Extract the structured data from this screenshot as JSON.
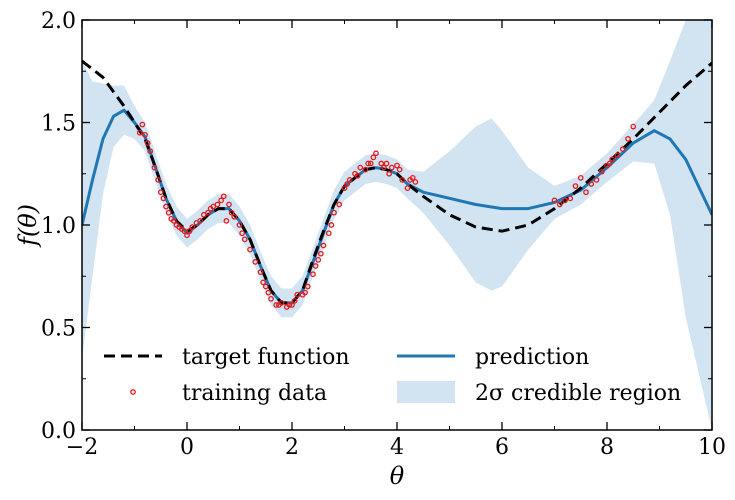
{
  "chart_data": {
    "type": "line",
    "title": "",
    "xlabel": "θ",
    "ylabel": "f(θ)",
    "xlim": [
      -2,
      10
    ],
    "ylim": [
      0.0,
      2.0
    ],
    "xticks": [
      -2,
      0,
      2,
      4,
      6,
      8,
      10
    ],
    "xtick_labels": [
      "−2",
      "0",
      "2",
      "4",
      "6",
      "8",
      "10"
    ],
    "yticks": [
      0.0,
      0.5,
      1.0,
      1.5,
      2.0
    ],
    "ytick_labels": [
      "0.0",
      "0.5",
      "1.0",
      "1.5",
      "2.0"
    ],
    "legend": {
      "placement": "bottom",
      "entries": [
        {
          "key": "target",
          "label": "target function"
        },
        {
          "key": "prediction",
          "label": "prediction"
        },
        {
          "key": "training",
          "label": "training data"
        },
        {
          "key": "band",
          "label": "2σ credible region"
        }
      ]
    },
    "colors": {
      "target": "#000000",
      "prediction": "#1f77b4",
      "training": "#e31a1c",
      "band_fill": "#a6c8e3"
    },
    "series": [
      {
        "name": "target function",
        "x": [
          -2,
          -1.6,
          -1.2,
          -1.0,
          -0.8,
          -0.6,
          -0.4,
          -0.2,
          0,
          0.2,
          0.4,
          0.6,
          0.8,
          1.0,
          1.2,
          1.4,
          1.6,
          1.8,
          2.0,
          2.2,
          2.4,
          2.6,
          2.8,
          3.0,
          3.2,
          3.4,
          3.6,
          3.8,
          4.0,
          4.2,
          4.5,
          5.0,
          5.5,
          6.0,
          6.5,
          7.0,
          7.5,
          8.0,
          8.5,
          9.0,
          9.5,
          10.0
        ],
        "y": [
          1.8,
          1.72,
          1.58,
          1.5,
          1.42,
          1.28,
          1.13,
          1.02,
          0.97,
          1.0,
          1.05,
          1.08,
          1.08,
          1.02,
          0.93,
          0.8,
          0.68,
          0.62,
          0.62,
          0.68,
          0.83,
          0.97,
          1.1,
          1.19,
          1.23,
          1.27,
          1.28,
          1.27,
          1.25,
          1.2,
          1.14,
          1.05,
          0.99,
          0.97,
          1.0,
          1.08,
          1.18,
          1.3,
          1.42,
          1.55,
          1.68,
          1.79
        ]
      },
      {
        "name": "prediction",
        "x": [
          -2,
          -1.8,
          -1.6,
          -1.4,
          -1.2,
          -1.0,
          -0.8,
          -0.6,
          -0.4,
          -0.2,
          0,
          0.2,
          0.4,
          0.6,
          0.8,
          1.0,
          1.2,
          1.4,
          1.6,
          1.8,
          2.0,
          2.2,
          2.4,
          2.6,
          2.8,
          3.0,
          3.2,
          3.4,
          3.6,
          3.8,
          4.0,
          4.2,
          4.5,
          5.0,
          5.5,
          6.0,
          6.5,
          7.0,
          7.5,
          8.0,
          8.5,
          8.9,
          9.2,
          9.5,
          10.0
        ],
        "y": [
          1.0,
          1.22,
          1.42,
          1.53,
          1.56,
          1.5,
          1.43,
          1.28,
          1.13,
          1.02,
          0.96,
          1.0,
          1.05,
          1.08,
          1.08,
          1.02,
          0.93,
          0.8,
          0.68,
          0.62,
          0.62,
          0.68,
          0.82,
          0.96,
          1.1,
          1.19,
          1.23,
          1.27,
          1.28,
          1.27,
          1.25,
          1.2,
          1.16,
          1.13,
          1.1,
          1.08,
          1.08,
          1.11,
          1.17,
          1.28,
          1.4,
          1.46,
          1.42,
          1.32,
          1.05
        ]
      }
    ],
    "credible_region": {
      "name": "2σ credible region",
      "x": [
        -2,
        -1.8,
        -1.6,
        -1.4,
        -1.2,
        -1.0,
        -0.8,
        -0.6,
        -0.4,
        -0.2,
        0,
        0.2,
        0.4,
        0.6,
        0.8,
        1.0,
        1.2,
        1.4,
        1.6,
        1.8,
        2.0,
        2.2,
        2.4,
        2.6,
        2.8,
        3.0,
        3.2,
        3.4,
        3.6,
        3.8,
        4.0,
        4.2,
        4.5,
        5.0,
        5.5,
        5.8,
        6.0,
        6.5,
        7.0,
        7.5,
        8.0,
        8.5,
        8.9,
        9.2,
        9.5,
        10.0
      ],
      "lower": [
        0.35,
        0.75,
        1.15,
        1.38,
        1.44,
        1.42,
        1.36,
        1.21,
        1.06,
        0.95,
        0.89,
        0.93,
        0.98,
        1.01,
        1.01,
        0.95,
        0.86,
        0.73,
        0.61,
        0.55,
        0.55,
        0.61,
        0.75,
        0.89,
        1.03,
        1.12,
        1.16,
        1.2,
        1.21,
        1.2,
        1.18,
        1.13,
        1.06,
        0.9,
        0.72,
        0.68,
        0.7,
        0.88,
        1.03,
        1.1,
        1.21,
        1.31,
        1.3,
        1.05,
        0.55,
        0.0
      ],
      "upper": [
        1.8,
        1.7,
        1.69,
        1.68,
        1.68,
        1.58,
        1.5,
        1.35,
        1.2,
        1.09,
        1.03,
        1.07,
        1.12,
        1.15,
        1.15,
        1.09,
        1.0,
        0.87,
        0.75,
        0.69,
        0.69,
        0.75,
        0.89,
        1.03,
        1.17,
        1.26,
        1.3,
        1.34,
        1.35,
        1.34,
        1.32,
        1.27,
        1.26,
        1.36,
        1.48,
        1.52,
        1.46,
        1.28,
        1.19,
        1.24,
        1.35,
        1.49,
        1.61,
        1.8,
        2.0,
        2.0
      ]
    },
    "training_data": {
      "name": "training data",
      "x": [
        -0.9,
        -0.85,
        -0.8,
        -0.75,
        -0.7,
        -0.62,
        -0.55,
        -0.5,
        -0.45,
        -0.4,
        -0.35,
        -0.3,
        -0.25,
        -0.2,
        -0.15,
        -0.1,
        -0.05,
        0.0,
        0.05,
        0.1,
        0.18,
        0.25,
        0.32,
        0.4,
        0.45,
        0.5,
        0.58,
        0.65,
        0.7,
        0.75,
        0.8,
        0.85,
        0.9,
        1.0,
        1.05,
        1.1,
        1.2,
        1.3,
        1.4,
        1.45,
        1.5,
        1.55,
        1.6,
        1.7,
        1.75,
        1.8,
        1.9,
        1.95,
        2.0,
        2.05,
        2.1,
        2.2,
        2.25,
        2.3,
        2.4,
        2.45,
        2.5,
        2.55,
        2.6,
        2.7,
        2.75,
        2.8,
        2.9,
        3.0,
        3.05,
        3.1,
        3.2,
        3.25,
        3.3,
        3.4,
        3.45,
        3.5,
        3.55,
        3.6,
        3.7,
        3.75,
        3.8,
        3.85,
        3.9,
        4.0,
        4.05,
        4.1,
        4.2,
        4.25,
        4.3,
        4.35,
        7.0,
        7.1,
        7.2,
        7.3,
        7.4,
        7.5,
        7.6,
        7.7,
        7.8,
        7.9,
        8.0,
        8.05,
        8.1,
        8.2,
        8.3,
        8.4,
        8.5
      ],
      "y": [
        1.45,
        1.49,
        1.44,
        1.4,
        1.36,
        1.28,
        1.22,
        1.16,
        1.13,
        1.09,
        1.06,
        1.03,
        1.02,
        1.0,
        0.99,
        0.98,
        0.97,
        0.95,
        0.97,
        0.99,
        1.01,
        1.02,
        1.05,
        1.06,
        1.08,
        1.09,
        1.1,
        1.12,
        1.14,
        1.02,
        1.1,
        1.06,
        1.04,
        1.0,
        0.96,
        0.93,
        0.88,
        0.82,
        0.77,
        0.72,
        0.7,
        0.67,
        0.64,
        0.61,
        0.61,
        0.62,
        0.6,
        0.61,
        0.61,
        0.63,
        0.66,
        0.66,
        0.67,
        0.7,
        0.76,
        0.8,
        0.83,
        0.86,
        0.9,
        0.96,
        1.0,
        1.06,
        1.1,
        1.18,
        1.2,
        1.22,
        1.25,
        1.24,
        1.28,
        1.27,
        1.3,
        1.3,
        1.33,
        1.35,
        1.3,
        1.28,
        1.3,
        1.25,
        1.28,
        1.29,
        1.27,
        1.22,
        1.18,
        1.22,
        1.23,
        1.21,
        1.12,
        1.1,
        1.12,
        1.13,
        1.19,
        1.23,
        1.16,
        1.2,
        1.22,
        1.26,
        1.29,
        1.3,
        1.32,
        1.34,
        1.37,
        1.42,
        1.48
      ]
    }
  }
}
